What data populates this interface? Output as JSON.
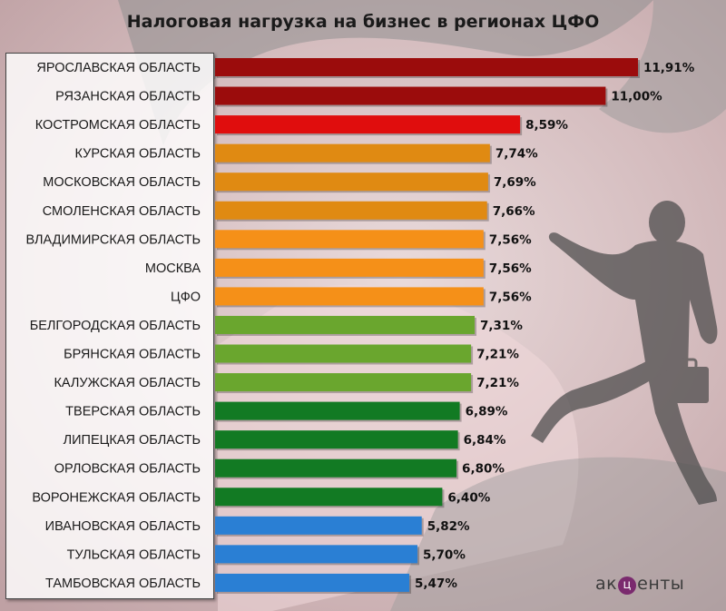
{
  "brand": {
    "before": "ак",
    "mid": "ц",
    "after": "енты"
  },
  "chart_data": {
    "type": "bar",
    "orientation": "horizontal",
    "title": "Налоговая нагрузка на бизнес в регионах ЦФО",
    "categories": [
      "ЯРОСЛАВСКАЯ ОБЛАСТЬ",
      "РЯЗАНСКАЯ ОБЛАСТЬ",
      "КОСТРОМСКАЯ ОБЛАСТЬ",
      "КУРСКАЯ ОБЛАСТЬ",
      "МОСКОВСКАЯ ОБЛАСТЬ",
      "СМОЛЕНСКАЯ ОБЛАСТЬ",
      "ВЛАДИМИРСКАЯ ОБЛАСТЬ",
      "МОСКВА",
      "ЦФО",
      "БЕЛГОРОДСКАЯ ОБЛАСТЬ",
      "БРЯНСКАЯ ОБЛАСТЬ",
      "КАЛУЖСКАЯ ОБЛАСТЬ",
      "ТВЕРСКАЯ ОБЛАСТЬ",
      "ЛИПЕЦКАЯ ОБЛАСТЬ",
      "ОРЛОВСКАЯ ОБЛАСТЬ",
      "ВОРОНЕЖСКАЯ ОБЛАСТЬ",
      "ИВАНОВСКАЯ ОБЛАСТЬ",
      "ТУЛЬСКАЯ ОБЛАСТЬ",
      "ТАМБОВСКАЯ ОБЛАСТЬ"
    ],
    "values": [
      11.91,
      11.0,
      8.59,
      7.74,
      7.69,
      7.66,
      7.56,
      7.56,
      7.56,
      7.31,
      7.21,
      7.21,
      6.89,
      6.84,
      6.8,
      6.4,
      5.82,
      5.7,
      5.47
    ],
    "value_labels": [
      "11,91%",
      "11,00%",
      "8,59%",
      "7,74%",
      "7,69%",
      "7,66%",
      "7,56%",
      "7,56%",
      "7,56%",
      "7,31%",
      "7,21%",
      "7,21%",
      "6,89%",
      "6,84%",
      "6,80%",
      "6,40%",
      "5,82%",
      "5,70%",
      "5,47%"
    ],
    "bar_colors": [
      "#9b0c0c",
      "#9b0c0c",
      "#e00d0d",
      "#e08a12",
      "#e08a12",
      "#e08a12",
      "#f59018",
      "#f59018",
      "#f59018",
      "#6aa62e",
      "#6aa62e",
      "#6aa62e",
      "#127a23",
      "#127a23",
      "#127a23",
      "#127a23",
      "#2a7fd4",
      "#2a7fd4",
      "#2a7fd4"
    ],
    "xlim": [
      0,
      12
    ],
    "grid": false,
    "legend": "none"
  }
}
